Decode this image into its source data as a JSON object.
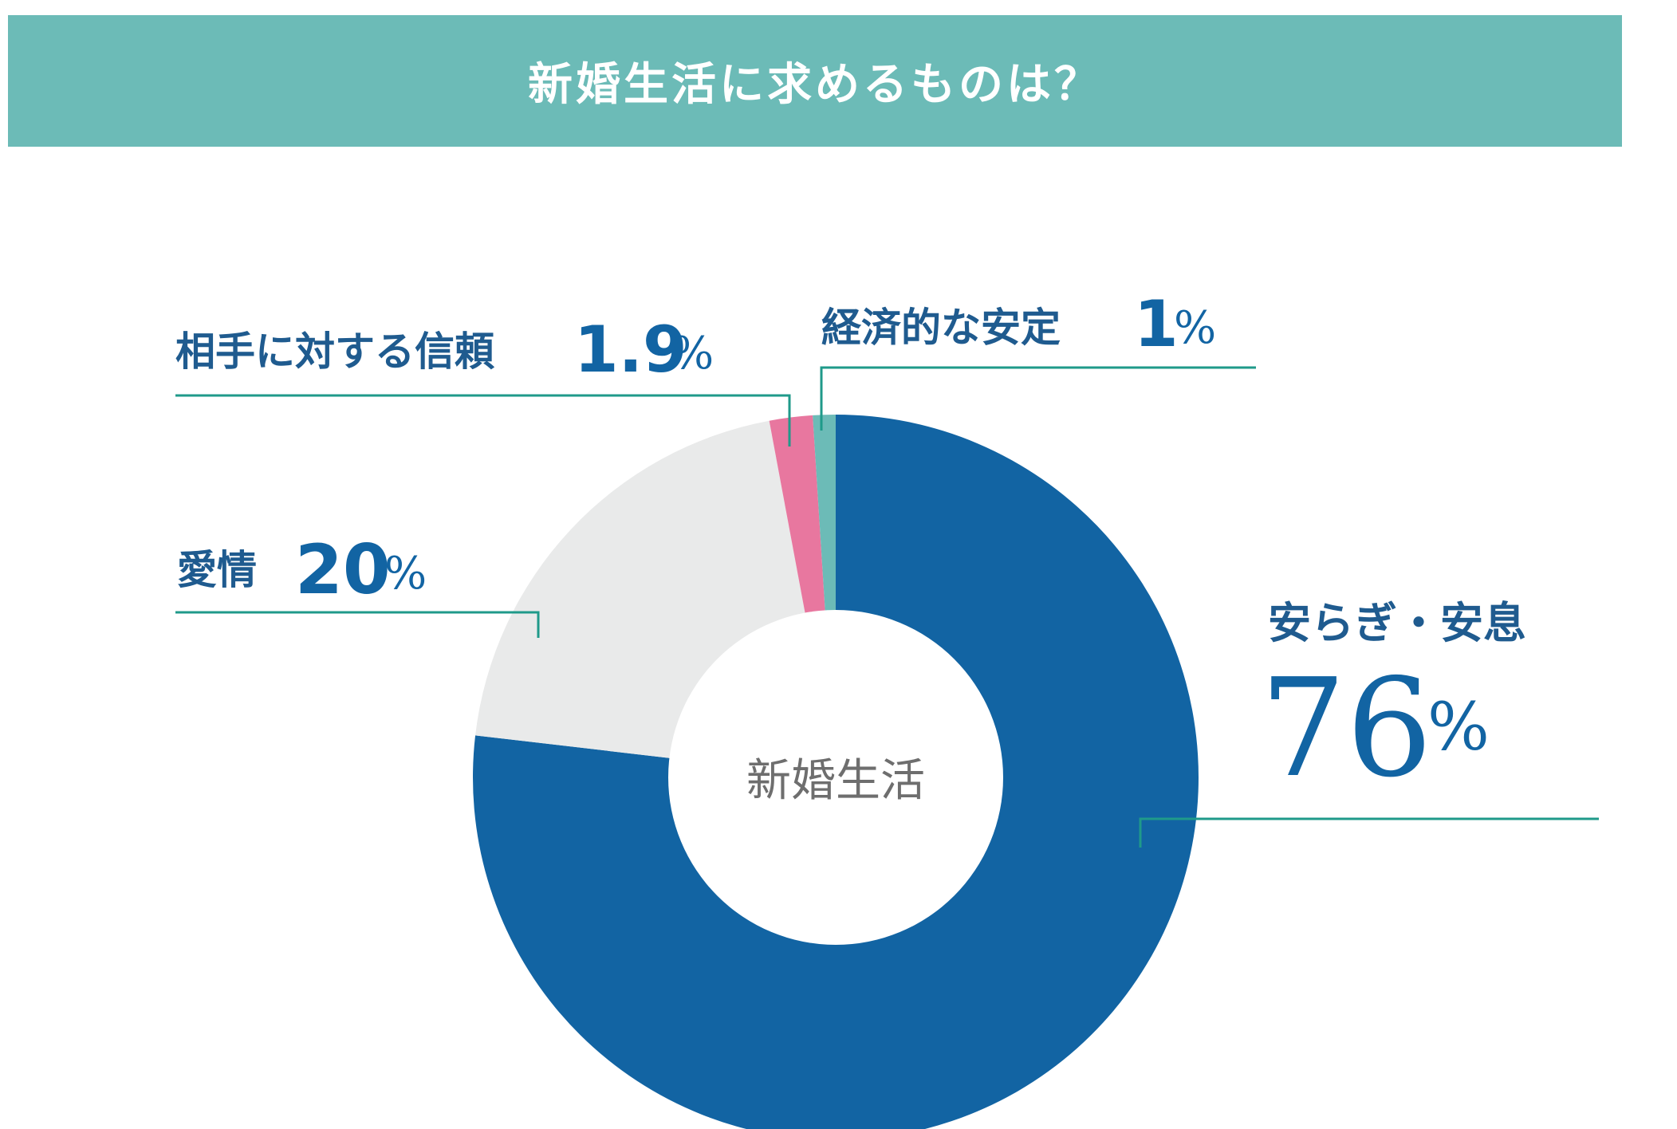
{
  "header": {
    "title": "新婚生活に求めるものは？"
  },
  "chart_data": {
    "type": "pie",
    "title": "新婚生活に求めるものは？",
    "center_label": "新婚生活",
    "unit": "%",
    "slices": [
      {
        "label": "安らぎ・安息",
        "value": 76,
        "display": "76",
        "color": "#1264a3"
      },
      {
        "label": "愛情",
        "value": 20,
        "display": "20",
        "color": "#e9eaea"
      },
      {
        "label": "相手に対する信頼",
        "value": 1.9,
        "display": "1.9",
        "color": "#e8779f"
      },
      {
        "label": "経済的な安定",
        "value": 1,
        "display": "1",
        "color": "#6cbbb7"
      }
    ],
    "leader_line_color": "#1f9a8a"
  }
}
